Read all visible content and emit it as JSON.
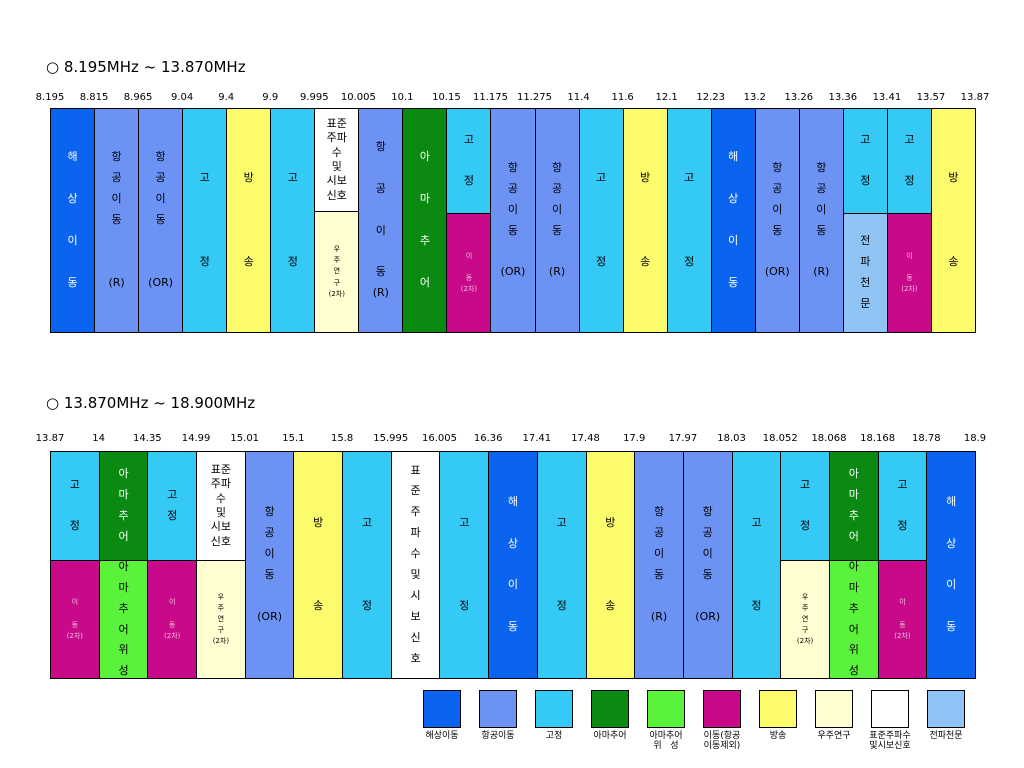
{
  "section1": {
    "title": "○ 8.195MHz ~ 13.870MHz",
    "ticks": [
      "8.195",
      "8.815",
      "8.965",
      "9.04",
      "9.4",
      "9.9",
      "9.995",
      "10.005",
      "10.1",
      "10.15",
      "11.175",
      "11.275",
      "11.4",
      "11.6",
      "12.1",
      "12.23",
      "13.2",
      "13.26",
      "13.36",
      "13.41",
      "13.57",
      "13.87"
    ],
    "cells": [
      {
        "col": 0,
        "color": "maritime",
        "text": "해\n\n상\n\n이\n\n동"
      },
      {
        "col": 1,
        "color": "aero",
        "text": "항\n공\n이\n동\n\n\n(R)"
      },
      {
        "col": 2,
        "color": "aero",
        "text": "항\n공\n이\n동\n\n\n(OR)"
      },
      {
        "col": 3,
        "color": "fixed",
        "text": "고\n\n\n\n정"
      },
      {
        "col": 4,
        "color": "broadcast",
        "text": "방\n\n\n\n송"
      },
      {
        "col": 5,
        "color": "fixed",
        "text": "고\n\n\n\n정"
      },
      {
        "col": 6,
        "color": "standard",
        "split": 0.46,
        "text": "표준\n주파\n수\n및\n시보\n신호",
        "bottom": {
          "color": "space",
          "text": "우\n주\n연\n구\n(2차)"
        }
      },
      {
        "col": 7,
        "color": "aero",
        "text": "항\n\n공\n\n이\n\n동\n(R)"
      },
      {
        "col": 8,
        "color": "amateur",
        "text": "아\n\n마\n\n추\n\n어"
      },
      {
        "col": 9,
        "color": "fixed",
        "split": 0.47,
        "text": "고\n\n정",
        "bottom": {
          "color": "mobile",
          "text": "이\n\n동\n(2차)"
        }
      },
      {
        "col": 10,
        "color": "aero",
        "text": "항\n공\n이\n동\n\n(OR)"
      },
      {
        "col": 11,
        "color": "aero",
        "text": "항\n공\n이\n동\n\n(R)"
      },
      {
        "col": 12,
        "color": "fixed",
        "text": "고\n\n\n\n정"
      },
      {
        "col": 13,
        "color": "broadcast",
        "text": "방\n\n\n\n송"
      },
      {
        "col": 14,
        "color": "fixed",
        "text": "고\n\n\n\n정"
      },
      {
        "col": 15,
        "color": "maritime",
        "text": "해\n\n상\n\n이\n\n동"
      },
      {
        "col": 16,
        "color": "aero",
        "text": "항\n공\n이\n동\n\n(OR)"
      },
      {
        "col": 17,
        "color": "aero",
        "text": "항\n공\n이\n동\n\n(R)"
      },
      {
        "col": 18,
        "color": "fixed",
        "split": 0.47,
        "text": "고\n\n정",
        "bottom": {
          "color": "radioastro",
          "text": "전\n파\n천\n문"
        }
      },
      {
        "col": 19,
        "color": "fixed",
        "split": 0.47,
        "text": "고\n\n정",
        "bottom": {
          "color": "mobile",
          "text": "이\n\n동\n(2차)"
        }
      },
      {
        "col": 20,
        "color": "broadcast",
        "text": "방\n\n\n\n송"
      }
    ]
  },
  "section2": {
    "title": "○ 13.870MHz ~ 18.900MHz",
    "ticks": [
      "13.87",
      "14",
      "14.35",
      "14.99",
      "15.01",
      "15.1",
      "15.8",
      "15.995",
      "16.005",
      "16.36",
      "17.41",
      "17.48",
      "17.9",
      "17.97",
      "18.03",
      "18.052",
      "18.068",
      "18.168",
      "18.78",
      "18.9"
    ],
    "cells": [
      {
        "col": 0,
        "color": "fixed",
        "split": 0.48,
        "text": "고\n\n정",
        "bottom": {
          "color": "mobile",
          "text": "이\n\n동\n(2차)"
        }
      },
      {
        "col": 1,
        "color": "amateur",
        "split": 0.48,
        "text": "아\n마\n추\n어",
        "bottom": {
          "color": "amsat",
          "text": "아\n마\n추\n어\n위\n성"
        }
      },
      {
        "col": 2,
        "color": "fixed",
        "split": 0.48,
        "text": "고\n정",
        "bottom": {
          "color": "mobile",
          "text": "이\n\n동\n(2차)"
        }
      },
      {
        "col": 3,
        "color": "standard",
        "split": 0.48,
        "text": "표준\n주파\n수\n및\n시보\n신호",
        "bottom": {
          "color": "space",
          "text": "우\n주\n연\n구\n(2차)"
        }
      },
      {
        "col": 4,
        "color": "aero",
        "text": "항\n공\n이\n동\n\n(OR)"
      },
      {
        "col": 5,
        "color": "broadcast",
        "text": "방\n\n\n\n송"
      },
      {
        "col": 6,
        "color": "fixed",
        "text": "고\n\n\n\n정"
      },
      {
        "col": 7,
        "color": "standard",
        "text": "표\n준\n주\n파\n수\n및\n시\n보\n신\n호"
      },
      {
        "col": 8,
        "color": "fixed",
        "text": "고\n\n\n\n정"
      },
      {
        "col": 9,
        "color": "maritime",
        "text": "해\n\n상\n\n이\n\n동"
      },
      {
        "col": 10,
        "color": "fixed",
        "text": "고\n\n\n\n정"
      },
      {
        "col": 11,
        "color": "broadcast",
        "text": "방\n\n\n\n송"
      },
      {
        "col": 12,
        "color": "aero",
        "text": "항\n공\n이\n동\n\n(R)"
      },
      {
        "col": 13,
        "color": "aero",
        "text": "항\n공\n이\n동\n\n(OR)"
      },
      {
        "col": 14,
        "color": "fixed",
        "text": "고\n\n\n\n정"
      },
      {
        "col": 15,
        "color": "fixed",
        "split": 0.48,
        "text": "고\n\n정",
        "bottom": {
          "color": "space",
          "text": "우\n주\n연\n구\n(2차)"
        }
      },
      {
        "col": 16,
        "color": "amateur",
        "split": 0.48,
        "text": "아\n마\n추\n어",
        "bottom": {
          "color": "amsat",
          "text": "아\n마\n추\n어\n위\n성"
        }
      },
      {
        "col": 17,
        "color": "fixed",
        "split": 0.48,
        "text": "고\n\n정",
        "bottom": {
          "color": "mobile",
          "text": "이\n\n동\n(2차)"
        }
      },
      {
        "col": 18,
        "color": "maritime",
        "text": "해\n\n상\n\n이\n\n동"
      }
    ]
  },
  "colors": {
    "maritime": "#0b64f0",
    "aero": "#6c92f4",
    "fixed": "#35c9f5",
    "amateur": "#0b8a12",
    "amsat": "#5bf23c",
    "mobile": "#c80a8a",
    "broadcast": "#fbfb6c",
    "space": "#fefed0",
    "standard": "#ffffff",
    "radioastro": "#90c4f5"
  },
  "legend": [
    {
      "color": "maritime",
      "label": "해상이동"
    },
    {
      "color": "aero",
      "label": "항공이동"
    },
    {
      "color": "fixed",
      "label": "고정"
    },
    {
      "color": "amateur",
      "label": "아마추어"
    },
    {
      "color": "amsat",
      "label": "아마추어\n위   성"
    },
    {
      "color": "mobile",
      "label": "이동(항공\n이동제외)"
    },
    {
      "color": "broadcast",
      "label": "방송"
    },
    {
      "color": "space",
      "label": "우주연구"
    },
    {
      "color": "standard",
      "label": "표준주파수\n및시보신호"
    },
    {
      "color": "radioastro",
      "label": "전파천문"
    }
  ]
}
